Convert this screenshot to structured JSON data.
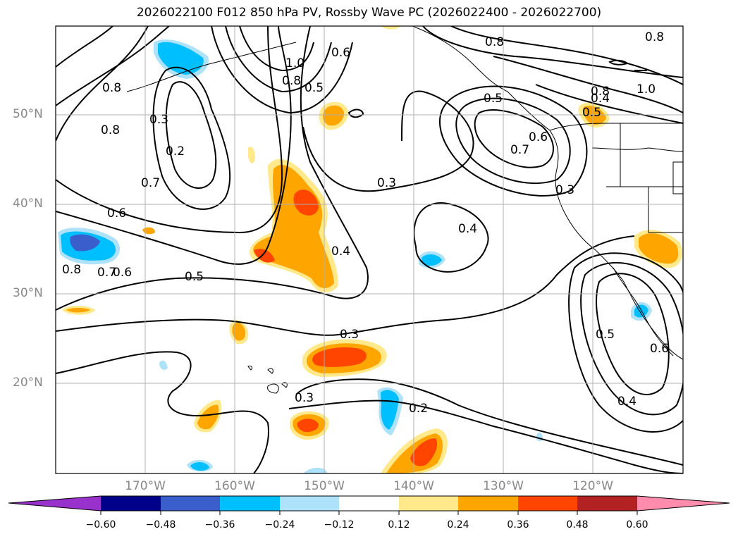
{
  "title": "2026022100 F012 850 hPa PV, Rossby Wave PC (2026022400 - 2026022700)",
  "lat_labels": [
    "50°N",
    "40°N",
    "30°N",
    "20°N"
  ],
  "lon_labels": [
    "170°W",
    "160°W",
    "150°W",
    "140°W",
    "130°W",
    "120°W"
  ],
  "contour_labels": [
    "0.8",
    "1.0",
    "0.8",
    "0.6",
    "0.5",
    "0.3",
    "0.2",
    "0.7",
    "0.6",
    "0.5",
    "0.8",
    "0.7",
    "0.6",
    "0.4",
    "0.3",
    "0.4",
    "0.3",
    "0.2",
    "0.3",
    "0.5",
    "0.6",
    "0.4",
    "0.8",
    "0.7",
    "0.6",
    "0.5",
    "0.3",
    "0.8",
    "1.0",
    "0.5",
    "0.4",
    "0.8",
    "0.8"
  ],
  "colorbar": {
    "ticks": [
      "−0.60",
      "−0.48",
      "−0.36",
      "−0.24",
      "−0.12",
      "0.12",
      "0.24",
      "0.36",
      "0.48",
      "0.60"
    ],
    "colors": [
      "#9932cc",
      "#00008b",
      "#3a5fcd",
      "#00bfff",
      "#aee2fb",
      "#ffffff",
      "#ffe98a",
      "#ffa500",
      "#ff4500",
      "#b22222",
      "#ff8bad"
    ]
  },
  "fill_colors": {
    "pos_light": "#ffe98a",
    "pos_med": "#ffa500",
    "pos_strong": "#ff4500",
    "neg_light": "#aee2fb",
    "neg_med": "#00bfff",
    "neg_strong": "#3a5fcd"
  }
}
